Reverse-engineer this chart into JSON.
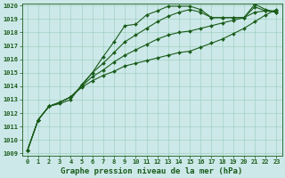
{
  "title": "Graphe pression niveau de la mer (hPa)",
  "ylabel_range": [
    1009,
    1020
  ],
  "yticks": [
    1009,
    1010,
    1011,
    1012,
    1013,
    1014,
    1015,
    1016,
    1017,
    1018,
    1019,
    1020
  ],
  "xticks": [
    0,
    1,
    2,
    3,
    4,
    5,
    6,
    7,
    8,
    9,
    10,
    11,
    12,
    13,
    14,
    15,
    16,
    17,
    18,
    19,
    20,
    21,
    22,
    23
  ],
  "bg_color": "#cce8e8",
  "line_color": "#1a5c1a",
  "grid_color": "#99ccbb",
  "series": [
    [
      1009.2,
      1011.5,
      1012.5,
      1012.7,
      1013.0,
      1014.1,
      1015.0,
      1016.2,
      1017.3,
      1018.5,
      1018.6,
      1019.3,
      1019.6,
      1019.95,
      1019.95,
      1019.95,
      1019.7,
      1019.1,
      1019.1,
      1019.1,
      1019.1,
      1020.1,
      1019.7,
      1019.5
    ],
    [
      1009.2,
      1011.5,
      1012.5,
      1012.8,
      1013.2,
      1013.9,
      1014.4,
      1014.8,
      1015.1,
      1015.5,
      1015.7,
      1015.9,
      1016.1,
      1016.3,
      1016.5,
      1016.6,
      1016.9,
      1017.2,
      1017.5,
      1017.9,
      1018.3,
      1018.8,
      1019.3,
      1019.7
    ],
    [
      1009.2,
      1011.5,
      1012.5,
      1012.8,
      1013.2,
      1014.0,
      1014.7,
      1015.2,
      1015.8,
      1016.3,
      1016.7,
      1017.1,
      1017.5,
      1017.8,
      1018.0,
      1018.1,
      1018.3,
      1018.5,
      1018.7,
      1018.9,
      1019.1,
      1019.5,
      1019.6,
      1019.6
    ],
    [
      1009.2,
      1011.5,
      1012.5,
      1012.8,
      1013.2,
      1014.0,
      1015.0,
      1015.7,
      1016.5,
      1017.3,
      1017.8,
      1018.3,
      1018.8,
      1019.2,
      1019.5,
      1019.7,
      1019.5,
      1019.1,
      1019.1,
      1019.1,
      1019.1,
      1019.9,
      1019.6,
      1019.5
    ]
  ],
  "marker": "D",
  "marker_size": 2.0,
  "line_width": 0.8,
  "font_color": "#1a5c1a",
  "title_fontsize": 6.5,
  "tick_fontsize": 5.0,
  "fig_width": 3.2,
  "fig_height": 2.0,
  "dpi": 100
}
